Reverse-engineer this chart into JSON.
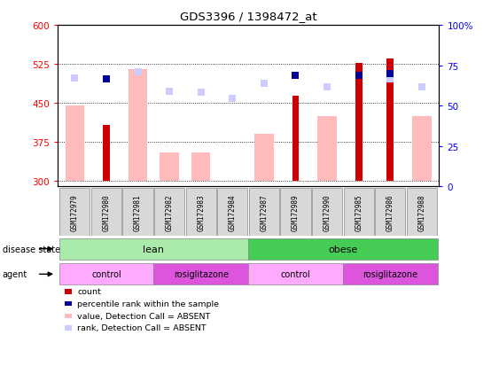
{
  "title": "GDS3396 / 1398472_at",
  "samples": [
    "GSM172979",
    "GSM172980",
    "GSM172981",
    "GSM172982",
    "GSM172983",
    "GSM172984",
    "GSM172987",
    "GSM172989",
    "GSM172990",
    "GSM172985",
    "GSM172986",
    "GSM172988"
  ],
  "ylim_left": [
    290,
    600
  ],
  "ylim_right": [
    0,
    100
  ],
  "yticks_left": [
    300,
    375,
    450,
    525,
    600
  ],
  "yticks_right": [
    0,
    25,
    50,
    75,
    100
  ],
  "ytick_labels_right": [
    "0",
    "25",
    "50",
    "75",
    "100%"
  ],
  "count_values": [
    null,
    407,
    null,
    null,
    null,
    null,
    null,
    463,
    null,
    527,
    535,
    null
  ],
  "rank_values": [
    null,
    497,
    null,
    null,
    null,
    null,
    null,
    503,
    null,
    503,
    506,
    null
  ],
  "value_absent": [
    445,
    null,
    515,
    355,
    355,
    null,
    390,
    null,
    425,
    null,
    null,
    425
  ],
  "rank_absent": [
    498,
    null,
    510,
    472,
    470,
    458,
    487,
    null,
    481,
    null,
    497,
    480
  ],
  "disease_state": [
    {
      "label": "lean",
      "start": 0,
      "end": 6,
      "color": "#aaeaaa"
    },
    {
      "label": "obese",
      "start": 6,
      "end": 12,
      "color": "#44cc55"
    }
  ],
  "agent": [
    {
      "label": "control",
      "start": 0,
      "end": 3,
      "color": "#ffaaff"
    },
    {
      "label": "rosiglitazone",
      "start": 3,
      "end": 6,
      "color": "#dd55dd"
    },
    {
      "label": "control",
      "start": 6,
      "end": 9,
      "color": "#ffaaff"
    },
    {
      "label": "rosiglitazone",
      "start": 9,
      "end": 12,
      "color": "#dd55dd"
    }
  ],
  "count_color": "#cc0000",
  "rank_color": "#000099",
  "value_absent_color": "#ffbbbb",
  "rank_absent_color": "#ccccff",
  "bar_bottom": 300,
  "bar_width": 0.6,
  "count_bar_width": 0.22
}
